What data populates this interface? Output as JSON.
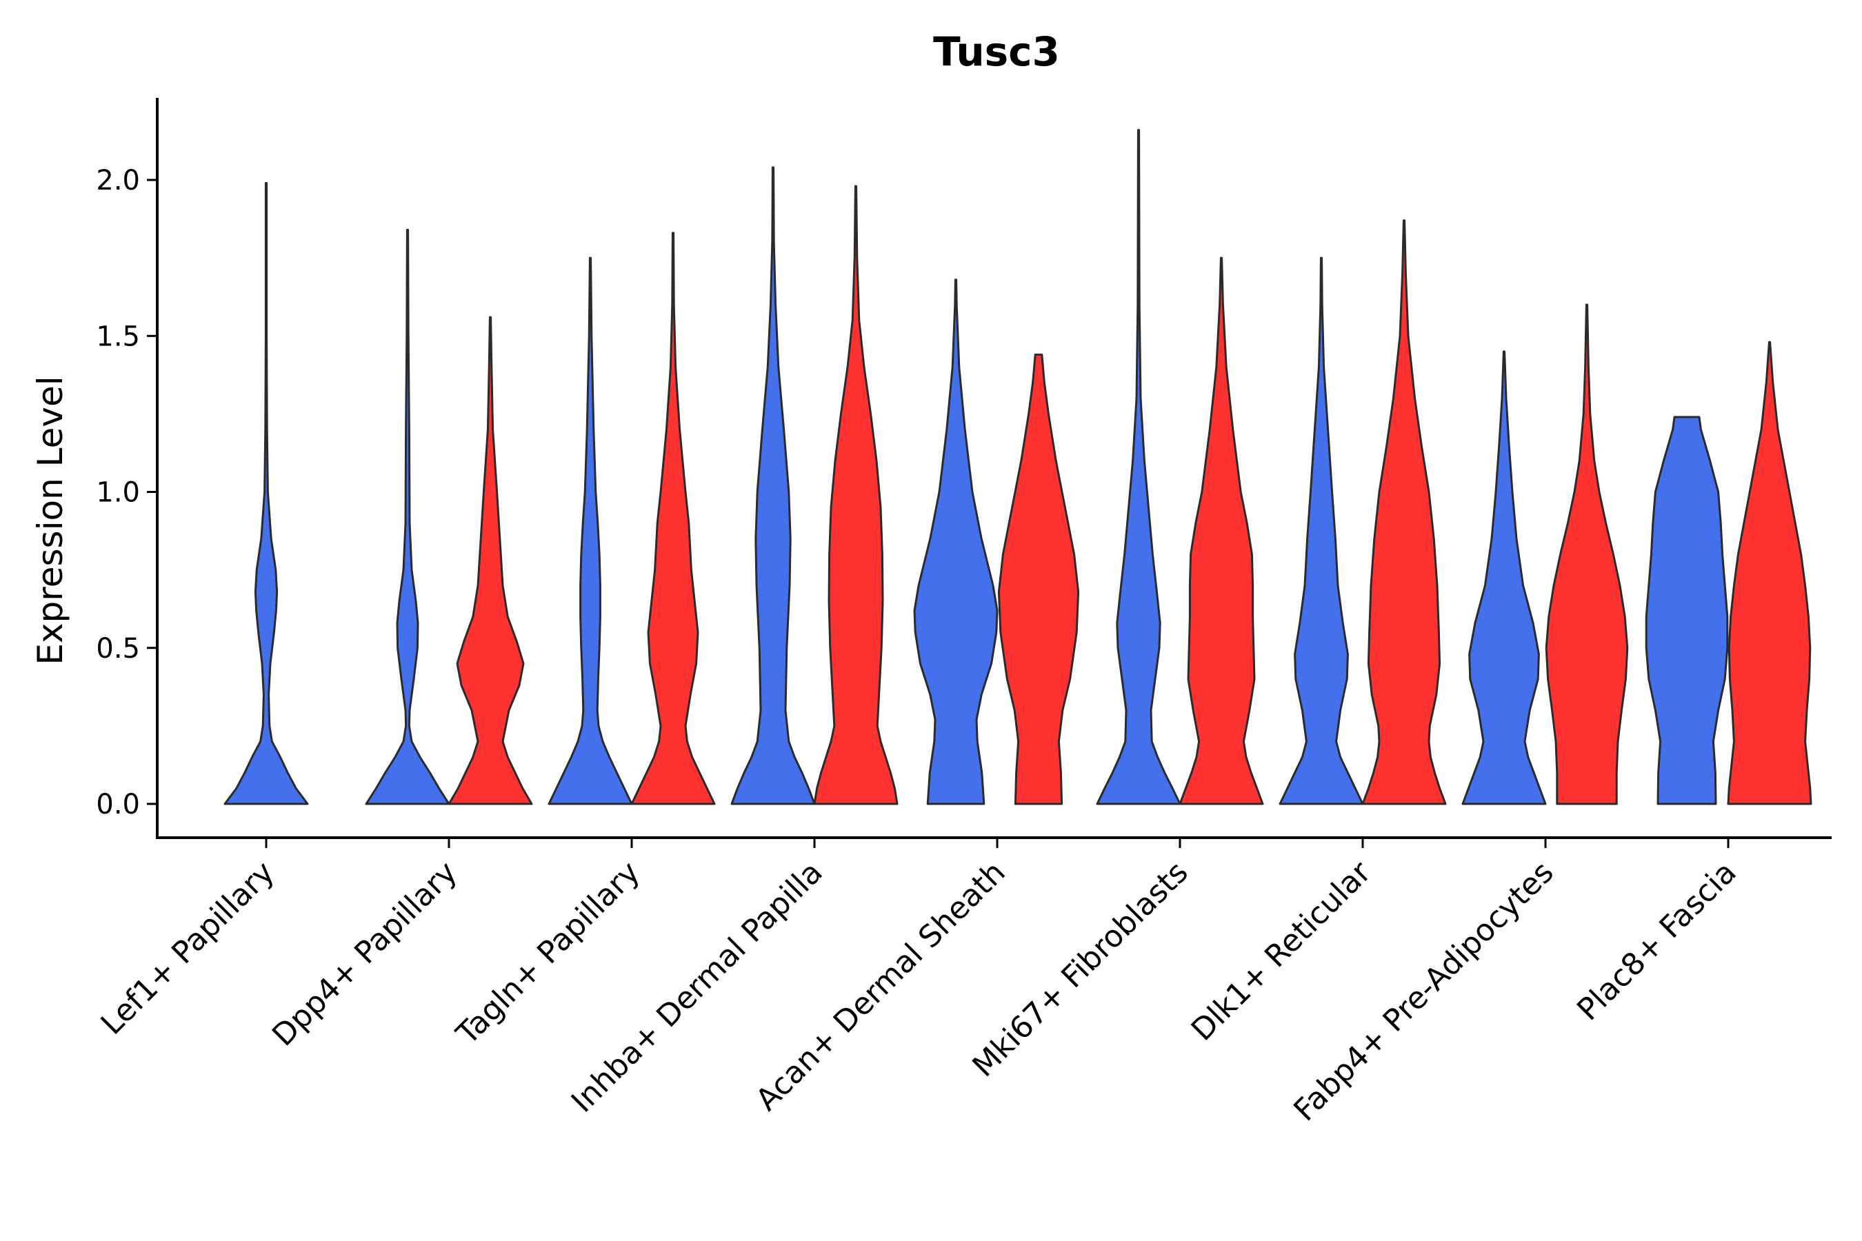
{
  "chart_data": {
    "type": "violin",
    "title": "Tusc3",
    "xlabel": "",
    "ylabel": "Expression Level",
    "ylim": [
      -0.11,
      2.27
    ],
    "yticks": [
      "0.0",
      "0.5",
      "1.0",
      "1.5",
      "2.0"
    ],
    "ytick_values": [
      0,
      0.5,
      1.0,
      1.5,
      2.0
    ],
    "grid": false,
    "legend": "none",
    "series_colors": {
      "group_1": "#4570EB",
      "group_2": "#FF3232"
    },
    "categories": [
      "Lef1+ Papillary",
      "Dpp4+ Papillary",
      "Tagln+ Papillary",
      "Inhba+ Dermal Papilla",
      "Acan+ Dermal Sheath",
      "Mki67+ Fibroblasts",
      "Dlk1+ Reticular",
      "Fabp4+ Pre-Adipocytes",
      "Plac8+ Fascia"
    ],
    "violins": [
      {
        "category": "Lef1+ Papillary",
        "group": "group_1",
        "color": "#4570EB",
        "max": 1.99,
        "profile": [
          [
            0,
            1.0
          ],
          [
            0.05,
            0.72
          ],
          [
            0.1,
            0.52
          ],
          [
            0.15,
            0.34
          ],
          [
            0.2,
            0.14
          ],
          [
            0.25,
            0.08
          ],
          [
            0.35,
            0.06
          ],
          [
            0.45,
            0.1
          ],
          [
            0.55,
            0.19
          ],
          [
            0.62,
            0.24
          ],
          [
            0.68,
            0.26
          ],
          [
            0.75,
            0.23
          ],
          [
            0.85,
            0.12
          ],
          [
            1.0,
            0.04
          ],
          [
            1.2,
            0.02
          ],
          [
            1.5,
            0.01
          ],
          [
            1.99,
            0.01
          ]
        ]
      },
      {
        "category": "Dpp4+ Papillary",
        "group": "group_1",
        "color": "#4570EB",
        "max": 1.84,
        "profile": [
          [
            0,
            1.0
          ],
          [
            0.05,
            0.76
          ],
          [
            0.1,
            0.54
          ],
          [
            0.15,
            0.3
          ],
          [
            0.2,
            0.1
          ],
          [
            0.25,
            0.04
          ],
          [
            0.3,
            0.05
          ],
          [
            0.4,
            0.15
          ],
          [
            0.5,
            0.24
          ],
          [
            0.58,
            0.25
          ],
          [
            0.65,
            0.2
          ],
          [
            0.75,
            0.1
          ],
          [
            0.9,
            0.05
          ],
          [
            1.2,
            0.04
          ],
          [
            1.5,
            0.02
          ],
          [
            1.84,
            0.01
          ]
        ]
      },
      {
        "category": "Dpp4+ Papillary",
        "group": "group_2",
        "color": "#FF3232",
        "max": 1.56,
        "profile": [
          [
            0,
            1.0
          ],
          [
            0.05,
            0.78
          ],
          [
            0.1,
            0.6
          ],
          [
            0.15,
            0.42
          ],
          [
            0.2,
            0.3
          ],
          [
            0.3,
            0.45
          ],
          [
            0.38,
            0.7
          ],
          [
            0.45,
            0.8
          ],
          [
            0.52,
            0.64
          ],
          [
            0.6,
            0.42
          ],
          [
            0.7,
            0.3
          ],
          [
            0.85,
            0.23
          ],
          [
            1.0,
            0.16
          ],
          [
            1.2,
            0.06
          ],
          [
            1.4,
            0.03
          ],
          [
            1.56,
            0.01
          ]
        ]
      },
      {
        "category": "Tagln+ Papillary",
        "group": "group_1",
        "color": "#4570EB",
        "max": 1.75,
        "profile": [
          [
            0,
            1.0
          ],
          [
            0.05,
            0.82
          ],
          [
            0.1,
            0.64
          ],
          [
            0.15,
            0.46
          ],
          [
            0.2,
            0.3
          ],
          [
            0.25,
            0.2
          ],
          [
            0.3,
            0.17
          ],
          [
            0.4,
            0.19
          ],
          [
            0.5,
            0.22
          ],
          [
            0.6,
            0.24
          ],
          [
            0.7,
            0.24
          ],
          [
            0.8,
            0.22
          ],
          [
            0.9,
            0.18
          ],
          [
            1.0,
            0.13
          ],
          [
            1.2,
            0.08
          ],
          [
            1.5,
            0.03
          ],
          [
            1.75,
            0.01
          ]
        ]
      },
      {
        "category": "Tagln+ Papillary",
        "group": "group_2",
        "color": "#FF3232",
        "max": 1.83,
        "profile": [
          [
            0,
            1.0
          ],
          [
            0.05,
            0.82
          ],
          [
            0.1,
            0.64
          ],
          [
            0.15,
            0.46
          ],
          [
            0.2,
            0.34
          ],
          [
            0.25,
            0.3
          ],
          [
            0.35,
            0.42
          ],
          [
            0.45,
            0.56
          ],
          [
            0.55,
            0.6
          ],
          [
            0.65,
            0.52
          ],
          [
            0.75,
            0.44
          ],
          [
            0.9,
            0.38
          ],
          [
            1.0,
            0.3
          ],
          [
            1.2,
            0.16
          ],
          [
            1.4,
            0.06
          ],
          [
            1.6,
            0.02
          ],
          [
            1.83,
            0.01
          ]
        ]
      },
      {
        "category": "Inhba+ Dermal Papilla",
        "group": "group_1",
        "color": "#4570EB",
        "max": 2.04,
        "profile": [
          [
            0,
            1.0
          ],
          [
            0.05,
            0.86
          ],
          [
            0.1,
            0.7
          ],
          [
            0.15,
            0.52
          ],
          [
            0.2,
            0.38
          ],
          [
            0.3,
            0.3
          ],
          [
            0.5,
            0.33
          ],
          [
            0.7,
            0.4
          ],
          [
            0.85,
            0.42
          ],
          [
            1.0,
            0.38
          ],
          [
            1.2,
            0.26
          ],
          [
            1.4,
            0.13
          ],
          [
            1.6,
            0.06
          ],
          [
            1.8,
            0.02
          ],
          [
            2.04,
            0.01
          ]
        ]
      },
      {
        "category": "Inhba+ Dermal Papilla",
        "group": "group_2",
        "color": "#FF3232",
        "max": 1.98,
        "profile": [
          [
            0,
            1.0
          ],
          [
            0.05,
            0.94
          ],
          [
            0.1,
            0.84
          ],
          [
            0.15,
            0.72
          ],
          [
            0.2,
            0.6
          ],
          [
            0.25,
            0.52
          ],
          [
            0.35,
            0.56
          ],
          [
            0.5,
            0.62
          ],
          [
            0.65,
            0.65
          ],
          [
            0.8,
            0.64
          ],
          [
            0.95,
            0.6
          ],
          [
            1.1,
            0.5
          ],
          [
            1.25,
            0.36
          ],
          [
            1.4,
            0.2
          ],
          [
            1.55,
            0.08
          ],
          [
            1.75,
            0.03
          ],
          [
            1.98,
            0.01
          ]
        ]
      },
      {
        "category": "Acan+ Dermal Sheath",
        "group": "group_1",
        "color": "#4570EB",
        "max": 1.68,
        "profile": [
          [
            0,
            0.68
          ],
          [
            0.1,
            0.63
          ],
          [
            0.2,
            0.52
          ],
          [
            0.27,
            0.5
          ],
          [
            0.35,
            0.62
          ],
          [
            0.45,
            0.86
          ],
          [
            0.55,
            0.98
          ],
          [
            0.62,
            1.0
          ],
          [
            0.7,
            0.9
          ],
          [
            0.85,
            0.62
          ],
          [
            1.0,
            0.4
          ],
          [
            1.2,
            0.22
          ],
          [
            1.4,
            0.08
          ],
          [
            1.6,
            0.02
          ],
          [
            1.68,
            0.01
          ]
        ]
      },
      {
        "category": "Acan+ Dermal Sheath",
        "group": "group_2",
        "color": "#FF3232",
        "max": 1.44,
        "profile": [
          [
            0,
            0.56
          ],
          [
            0.1,
            0.54
          ],
          [
            0.2,
            0.49
          ],
          [
            0.3,
            0.58
          ],
          [
            0.4,
            0.76
          ],
          [
            0.55,
            0.92
          ],
          [
            0.68,
            0.96
          ],
          [
            0.8,
            0.86
          ],
          [
            0.95,
            0.64
          ],
          [
            1.1,
            0.42
          ],
          [
            1.25,
            0.24
          ],
          [
            1.35,
            0.14
          ],
          [
            1.44,
            0.08
          ]
        ]
      },
      {
        "category": "Mki67+ Fibroblasts",
        "group": "group_1",
        "color": "#4570EB",
        "max": 2.16,
        "profile": [
          [
            0,
            1.0
          ],
          [
            0.05,
            0.82
          ],
          [
            0.1,
            0.63
          ],
          [
            0.15,
            0.46
          ],
          [
            0.2,
            0.32
          ],
          [
            0.3,
            0.3
          ],
          [
            0.4,
            0.4
          ],
          [
            0.5,
            0.5
          ],
          [
            0.58,
            0.52
          ],
          [
            0.68,
            0.44
          ],
          [
            0.8,
            0.34
          ],
          [
            0.95,
            0.24
          ],
          [
            1.1,
            0.14
          ],
          [
            1.3,
            0.05
          ],
          [
            1.6,
            0.02
          ],
          [
            2.16,
            0.01
          ]
        ]
      },
      {
        "category": "Mki67+ Fibroblasts",
        "group": "group_2",
        "color": "#FF3232",
        "max": 1.75,
        "profile": [
          [
            0,
            1.0
          ],
          [
            0.05,
            0.86
          ],
          [
            0.1,
            0.72
          ],
          [
            0.15,
            0.6
          ],
          [
            0.2,
            0.54
          ],
          [
            0.3,
            0.68
          ],
          [
            0.4,
            0.8
          ],
          [
            0.5,
            0.78
          ],
          [
            0.6,
            0.76
          ],
          [
            0.7,
            0.76
          ],
          [
            0.8,
            0.74
          ],
          [
            0.9,
            0.62
          ],
          [
            1.0,
            0.47
          ],
          [
            1.2,
            0.28
          ],
          [
            1.4,
            0.12
          ],
          [
            1.6,
            0.04
          ],
          [
            1.75,
            0.01
          ]
        ]
      },
      {
        "category": "Dlk1+ Reticular",
        "group": "group_1",
        "color": "#4570EB",
        "max": 1.75,
        "profile": [
          [
            0,
            1.0
          ],
          [
            0.05,
            0.82
          ],
          [
            0.1,
            0.64
          ],
          [
            0.15,
            0.46
          ],
          [
            0.2,
            0.36
          ],
          [
            0.3,
            0.46
          ],
          [
            0.4,
            0.62
          ],
          [
            0.48,
            0.64
          ],
          [
            0.58,
            0.52
          ],
          [
            0.7,
            0.4
          ],
          [
            0.85,
            0.34
          ],
          [
            1.0,
            0.26
          ],
          [
            1.2,
            0.16
          ],
          [
            1.4,
            0.06
          ],
          [
            1.6,
            0.02
          ],
          [
            1.75,
            0.01
          ]
        ]
      },
      {
        "category": "Dlk1+ Reticular",
        "group": "group_2",
        "color": "#FF3232",
        "max": 1.87,
        "profile": [
          [
            0,
            1.0
          ],
          [
            0.05,
            0.86
          ],
          [
            0.1,
            0.74
          ],
          [
            0.15,
            0.64
          ],
          [
            0.2,
            0.6
          ],
          [
            0.25,
            0.62
          ],
          [
            0.35,
            0.78
          ],
          [
            0.45,
            0.86
          ],
          [
            0.55,
            0.84
          ],
          [
            0.7,
            0.8
          ],
          [
            0.85,
            0.72
          ],
          [
            1.0,
            0.6
          ],
          [
            1.15,
            0.42
          ],
          [
            1.3,
            0.26
          ],
          [
            1.5,
            0.1
          ],
          [
            1.7,
            0.04
          ],
          [
            1.87,
            0.01
          ]
        ]
      },
      {
        "category": "Fabp4+ Pre-Adipocytes",
        "group": "group_1",
        "color": "#4570EB",
        "max": 1.45,
        "profile": [
          [
            0,
            1.0
          ],
          [
            0.05,
            0.86
          ],
          [
            0.1,
            0.72
          ],
          [
            0.15,
            0.58
          ],
          [
            0.2,
            0.5
          ],
          [
            0.3,
            0.62
          ],
          [
            0.4,
            0.82
          ],
          [
            0.48,
            0.84
          ],
          [
            0.58,
            0.7
          ],
          [
            0.7,
            0.46
          ],
          [
            0.85,
            0.3
          ],
          [
            1.0,
            0.2
          ],
          [
            1.15,
            0.12
          ],
          [
            1.3,
            0.05
          ],
          [
            1.45,
            0.01
          ]
        ]
      },
      {
        "category": "Fabp4+ Pre-Adipocytes",
        "group": "group_2",
        "color": "#FF3232",
        "max": 1.6,
        "profile": [
          [
            0,
            0.72
          ],
          [
            0.1,
            0.72
          ],
          [
            0.2,
            0.75
          ],
          [
            0.3,
            0.84
          ],
          [
            0.4,
            0.94
          ],
          [
            0.5,
            0.98
          ],
          [
            0.6,
            0.92
          ],
          [
            0.7,
            0.8
          ],
          [
            0.8,
            0.64
          ],
          [
            0.9,
            0.46
          ],
          [
            1.0,
            0.3
          ],
          [
            1.1,
            0.18
          ],
          [
            1.25,
            0.08
          ],
          [
            1.4,
            0.04
          ],
          [
            1.6,
            0.01
          ]
        ]
      },
      {
        "category": "Plac8+ Fascia",
        "group": "group_1",
        "color": "#4570EB",
        "max": 1.24,
        "profile": [
          [
            0,
            0.7
          ],
          [
            0.1,
            0.69
          ],
          [
            0.2,
            0.64
          ],
          [
            0.3,
            0.76
          ],
          [
            0.4,
            0.92
          ],
          [
            0.5,
            0.98
          ],
          [
            0.6,
            0.98
          ],
          [
            0.7,
            0.92
          ],
          [
            0.8,
            0.86
          ],
          [
            0.9,
            0.82
          ],
          [
            1.0,
            0.76
          ],
          [
            1.1,
            0.56
          ],
          [
            1.2,
            0.34
          ],
          [
            1.24,
            0.3
          ]
        ]
      },
      {
        "category": "Plac8+ Fascia",
        "group": "group_2",
        "color": "#FF3232",
        "max": 1.48,
        "profile": [
          [
            0,
            1.0
          ],
          [
            0.05,
            0.98
          ],
          [
            0.1,
            0.94
          ],
          [
            0.2,
            0.86
          ],
          [
            0.3,
            0.9
          ],
          [
            0.4,
            0.96
          ],
          [
            0.5,
            0.98
          ],
          [
            0.6,
            0.94
          ],
          [
            0.7,
            0.86
          ],
          [
            0.8,
            0.76
          ],
          [
            0.9,
            0.62
          ],
          [
            1.0,
            0.48
          ],
          [
            1.1,
            0.34
          ],
          [
            1.2,
            0.2
          ],
          [
            1.35,
            0.08
          ],
          [
            1.48,
            0.01
          ]
        ]
      }
    ]
  }
}
